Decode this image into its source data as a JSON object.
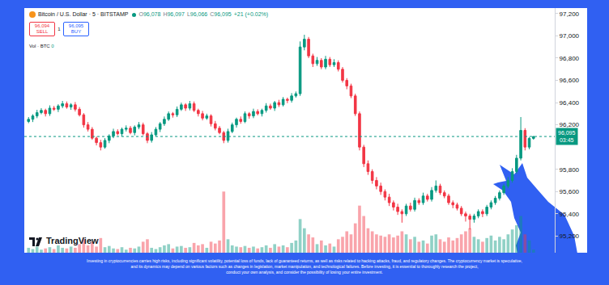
{
  "header": {
    "symbol_title": "Bitcoin / U.S. Dollar · 5 · BITSTAMP",
    "ohlc": [
      {
        "label": "O",
        "value": "96,078"
      },
      {
        "label": "H",
        "value": "96,097"
      },
      {
        "label": "L",
        "value": "96,066"
      },
      {
        "label": "C",
        "value": "96,095"
      }
    ],
    "change": "+21 (+0.02%)",
    "sell": {
      "price": "96,094",
      "label": "SELL"
    },
    "spread": "1",
    "buy": {
      "price": "96,095",
      "label": "BUY"
    },
    "volume_legend": {
      "label": "Vol · BTC",
      "value": "0"
    }
  },
  "chart_data": {
    "type": "candlestick",
    "open": [
      96230,
      96250,
      96280,
      96310,
      96330,
      96300,
      96350,
      96340,
      96370,
      96390,
      96360,
      96380,
      96340,
      96290,
      96200,
      96160,
      96080,
      96040,
      96000,
      96060,
      96100,
      96140,
      96120,
      96160,
      96170,
      96130,
      96180,
      96200,
      96120,
      96060,
      96110,
      96160,
      96210,
      96250,
      96300,
      96290,
      96340,
      96380,
      96350,
      96390,
      96330,
      96300,
      96260,
      96280,
      96210,
      96170,
      96130,
      96060,
      96140,
      96200,
      96250,
      96230,
      96300,
      96280,
      96320,
      96300,
      96330,
      96370,
      96350,
      96400,
      96380,
      96430,
      96420,
      96460,
      96480,
      96900,
      96970,
      96820,
      96750,
      96780,
      96720,
      96790,
      96740,
      96760,
      96700,
      96600,
      96550,
      96460,
      96300,
      96000,
      95850,
      95780,
      95700,
      95650,
      95600,
      95550,
      95500,
      95460,
      95420,
      95400,
      95470,
      95440,
      95520,
      95500,
      95560,
      95530,
      95610,
      95650,
      95590,
      95560,
      95500,
      95480,
      95450,
      95400,
      95380,
      95350,
      95380,
      95420,
      95400,
      95460,
      95500,
      95540,
      95590,
      95650,
      95700,
      95780,
      95900,
      96150,
      96000,
      96078
    ],
    "high": [
      96270,
      96295,
      96335,
      96350,
      96345,
      96375,
      96370,
      96385,
      96415,
      96410,
      96395,
      96405,
      96360,
      96305,
      96225,
      96180,
      96095,
      96065,
      96080,
      96115,
      96165,
      96160,
      96175,
      96195,
      96190,
      96195,
      96225,
      96220,
      96135,
      96135,
      96180,
      96225,
      96275,
      96320,
      96315,
      96365,
      96400,
      96395,
      96415,
      96410,
      96345,
      96325,
      96300,
      96295,
      96235,
      96190,
      96145,
      96165,
      96220,
      96265,
      96275,
      96320,
      96315,
      96345,
      96340,
      96345,
      96395,
      96390,
      96415,
      96425,
      96450,
      96445,
      96485,
      96500,
      96950,
      97010,
      96990,
      96840,
      96810,
      96800,
      96820,
      96810,
      96790,
      96780,
      96720,
      96620,
      96570,
      96480,
      96320,
      96020,
      95880,
      95800,
      95730,
      95680,
      95620,
      95580,
      95520,
      95490,
      95440,
      95490,
      95500,
      95545,
      95540,
      95590,
      95580,
      95640,
      95700,
      95670,
      95610,
      95580,
      95520,
      95500,
      95470,
      95420,
      95400,
      95400,
      95440,
      95440,
      95480,
      95520,
      95560,
      95610,
      95670,
      95730,
      95810,
      95930,
      96270,
      96170,
      96090,
      96097
    ],
    "low": [
      96215,
      96225,
      96260,
      96295,
      96275,
      96280,
      96325,
      96315,
      96350,
      96345,
      96335,
      96320,
      96275,
      96175,
      96140,
      96065,
      96015,
      95970,
      95985,
      96035,
      96080,
      96105,
      96095,
      96140,
      96115,
      96105,
      96160,
      96105,
      96035,
      96040,
      96095,
      96135,
      96190,
      96235,
      96265,
      96270,
      96325,
      96325,
      96330,
      96315,
      96275,
      96240,
      96245,
      96185,
      96150,
      96115,
      96035,
      96040,
      96125,
      96175,
      96210,
      96215,
      96255,
      96260,
      96285,
      96275,
      96310,
      96335,
      96325,
      96360,
      96365,
      96395,
      96400,
      96445,
      96460,
      96870,
      96800,
      96720,
      96730,
      96700,
      96700,
      96720,
      96720,
      96680,
      96580,
      96520,
      96440,
      96280,
      95970,
      95820,
      95750,
      95670,
      95620,
      95570,
      95520,
      95470,
      95430,
      95390,
      95320,
      95380,
      95420,
      95420,
      95480,
      95480,
      95510,
      95510,
      95590,
      95570,
      95540,
      95480,
      95450,
      95430,
      95380,
      95330,
      95260,
      95320,
      95360,
      95370,
      95380,
      95440,
      95480,
      95520,
      95570,
      95630,
      95680,
      95760,
      95880,
      95970,
      95980,
      96066
    ],
    "close": [
      96250,
      96280,
      96310,
      96330,
      96300,
      96350,
      96340,
      96370,
      96390,
      96360,
      96380,
      96340,
      96290,
      96200,
      96160,
      96080,
      96040,
      96000,
      96060,
      96100,
      96140,
      96120,
      96160,
      96170,
      96130,
      96180,
      96200,
      96120,
      96060,
      96110,
      96160,
      96210,
      96250,
      96300,
      96290,
      96340,
      96380,
      96350,
      96390,
      96330,
      96300,
      96260,
      96280,
      96210,
      96170,
      96130,
      96060,
      96140,
      96200,
      96250,
      96230,
      96300,
      96280,
      96320,
      96300,
      96330,
      96370,
      96350,
      96400,
      96380,
      96430,
      96420,
      96460,
      96480,
      96900,
      96970,
      96820,
      96750,
      96780,
      96720,
      96790,
      96740,
      96760,
      96700,
      96600,
      96550,
      96460,
      96300,
      96000,
      95850,
      95780,
      95700,
      95650,
      95600,
      95550,
      95500,
      95460,
      95420,
      95400,
      95470,
      95440,
      95520,
      95500,
      95560,
      95530,
      95610,
      95650,
      95590,
      95560,
      95500,
      95480,
      95450,
      95400,
      95380,
      95350,
      95380,
      95420,
      95400,
      95460,
      95500,
      95540,
      95590,
      95650,
      95700,
      95780,
      95900,
      96150,
      96000,
      96078,
      96095
    ],
    "series": [
      {
        "type": "bar",
        "axis": "y2",
        "values": [
          8,
          6,
          10,
          5,
          7,
          9,
          6,
          12,
          8,
          7,
          10,
          8,
          14,
          22,
          12,
          18,
          10,
          24,
          9,
          11,
          7,
          6,
          9,
          5,
          8,
          7,
          10,
          18,
          22,
          8,
          6,
          9,
          12,
          14,
          7,
          10,
          11,
          8,
          9,
          16,
          12,
          14,
          8,
          18,
          15,
          20,
          100,
          22,
          12,
          10,
          9,
          11,
          8,
          10,
          7,
          9,
          12,
          8,
          14,
          10,
          12,
          9,
          16,
          20,
          55,
          40,
          30,
          25,
          14,
          20,
          12,
          15,
          10,
          22,
          26,
          35,
          30,
          48,
          77,
          60,
          40,
          35,
          30,
          28,
          26,
          30,
          25,
          28,
          35,
          30,
          22,
          26,
          18,
          20,
          15,
          28,
          30,
          22,
          18,
          25,
          20,
          24,
          30,
          35,
          40,
          26,
          22,
          18,
          24,
          28,
          20,
          26,
          22,
          30,
          38,
          45,
          60,
          30,
          20,
          5
        ]
      }
    ],
    "ylim": [
      95050,
      97250
    ],
    "yticks": [
      {
        "value": 95200,
        "label": "95,200"
      },
      {
        "value": 95400,
        "label": "95,400"
      },
      {
        "value": 95600,
        "label": "95,600"
      },
      {
        "value": 95800,
        "label": "95,800"
      },
      {
        "value": 96200,
        "label": "96,200"
      },
      {
        "value": 96400,
        "label": "96,400"
      },
      {
        "value": 96600,
        "label": "96,600"
      },
      {
        "value": 96800,
        "label": "96,800"
      },
      {
        "value": 97000,
        "label": "97,000"
      },
      {
        "value": 97200,
        "label": "97,200"
      }
    ],
    "y2lim": [
      0,
      400
    ],
    "grid": false,
    "tick_labels": "y",
    "last_price": {
      "value": 96095,
      "label": "96,095",
      "countdown": "03:45"
    }
  },
  "branding": "TradingView",
  "disclaimer": [
    "Investing in cryptocurrencies carries high risks, including significant volatility, potential loss of funds, lack of guaranteed returns, as well as risks related to hacking attacks, fraud, and regulatory changes. The cryptocurrency market is speculative,",
    "and its dynamics may depend on various factors such as changes in legislation, market manipulation, and technological failures. Before investing, it is essential to thoroughly research the project,",
    "conduct your own analysis, and consider the possibility of losing your entire investment."
  ]
}
